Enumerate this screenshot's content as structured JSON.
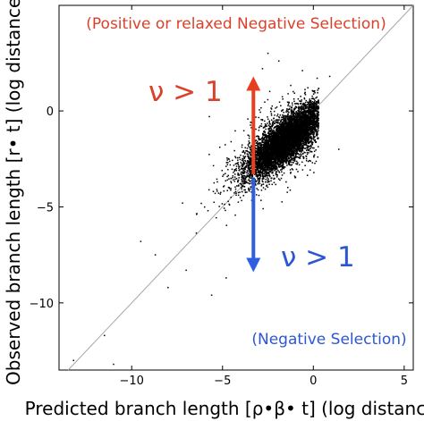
{
  "chart_data": {
    "type": "scatter",
    "title": "",
    "xlabel": "Predicted branch length [ρ•β• t] (log distance)",
    "ylabel": "Observed branch length [r• t] (log distance)",
    "xlim": [
      -14,
      5.5
    ],
    "ylim": [
      -13.5,
      5.5
    ],
    "xticks": [
      -10,
      -5,
      0,
      5
    ],
    "yticks": [
      0,
      -5,
      -10
    ],
    "xtick_labels": [
      "−10",
      "−5",
      "0",
      "5"
    ],
    "ytick_labels": [
      "0",
      "−5",
      "−10"
    ],
    "grid": false,
    "reference_line": {
      "slope": 1,
      "intercept": 0,
      "color": "#a8a8a8"
    },
    "cloud": {
      "center": [
        -1.5,
        -1.5
      ],
      "main_axis_direction": [
        1,
        0.85
      ],
      "main_axis_sd": 1.4,
      "minor_axis_sd": 0.48,
      "x_range": [
        -6.5,
        0.3
      ],
      "y_range": [
        -7.8,
        3.0
      ],
      "count": 7000,
      "color": "#000000"
    },
    "outliers": [
      {
        "x": -13.2,
        "y": -13.0
      },
      {
        "x": -11.5,
        "y": -11.7
      },
      {
        "x": -8.0,
        "y": -9.2
      },
      {
        "x": -8.7,
        "y": -7.5
      },
      {
        "x": -7.2,
        "y": -4.8
      },
      {
        "x": -7.0,
        "y": -8.3
      },
      {
        "x": -9.5,
        "y": -6.8
      },
      {
        "x": -5.6,
        "y": -9.6
      },
      {
        "x": -4.8,
        "y": -8.7
      },
      {
        "x": 1.4,
        "y": -2.0
      },
      {
        "x": 0.9,
        "y": 1.8
      },
      {
        "x": -2.5,
        "y": 3.0
      },
      {
        "x": -1.9,
        "y": 2.6
      },
      {
        "x": -2.8,
        "y": 2.2
      },
      {
        "x": -0.6,
        "y": 2.1
      },
      {
        "x": -11.0,
        "y": -13.2
      }
    ],
    "annotations": {
      "positive_label": {
        "text": "(Positive or relaxed Negative Selection)",
        "color": "#d9412a"
      },
      "negative_label": {
        "text": "(Negative Selection)",
        "color": "#2d56d4"
      },
      "upper_symbol": {
        "text": "ν > 1",
        "color": "#d9412a"
      },
      "lower_symbol": {
        "text": "ν > 1",
        "color": "#2d56d4"
      },
      "up_arrow": {
        "x": -3.3,
        "y_from": -3.3,
        "y_to": 1.8,
        "color": "#e8401f"
      },
      "down_arrow": {
        "x": -3.3,
        "y_from": -3.5,
        "y_to": -8.4,
        "color": "#2d5fe0"
      }
    }
  }
}
